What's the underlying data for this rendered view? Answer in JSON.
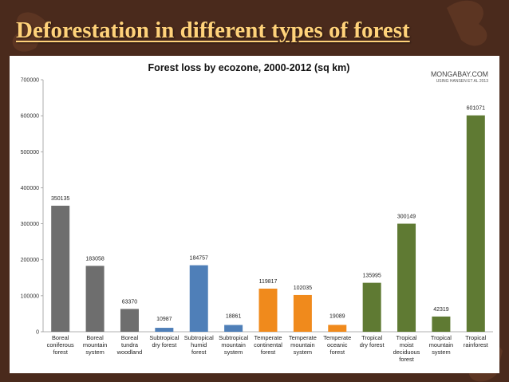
{
  "slide": {
    "title": "Deforestation in different types of forest",
    "background_color": "#4a2a1c",
    "title_color": "#ffd27a"
  },
  "source": {
    "line1": "MONGABAY.COM",
    "line2": "USING HANSEN ET AL 2013"
  },
  "chart_data": {
    "type": "bar",
    "title": "Forest loss by ecozone, 2000-2012 (sq km)",
    "xlabel": "",
    "ylabel": "",
    "ylim": [
      0,
      700000
    ],
    "yticks": [
      0,
      100000,
      200000,
      300000,
      400000,
      500000,
      600000,
      700000
    ],
    "grid": false,
    "legend": "none",
    "categories": [
      [
        "Boreal",
        "coniferous",
        "forest"
      ],
      [
        "Boreal",
        "mountain",
        "system"
      ],
      [
        "Boreal",
        "tundra",
        "woodland"
      ],
      [
        "Subtropical",
        "dry forest"
      ],
      [
        "Subtropical",
        "humid",
        "forest"
      ],
      [
        "Subtropical",
        "mountain",
        "system"
      ],
      [
        "Temperate",
        "continental",
        "forest"
      ],
      [
        "Temperate",
        "mountain",
        "system"
      ],
      [
        "Temperate",
        "oceanic",
        "forest"
      ],
      [
        "Tropical",
        "dry forest"
      ],
      [
        "Tropical",
        "moist",
        "deciduous",
        "forest"
      ],
      [
        "Tropical",
        "mountain",
        "system"
      ],
      [
        "Tropical",
        "rainforest"
      ]
    ],
    "values": [
      350135,
      183058,
      63370,
      10987,
      184757,
      18861,
      119817,
      102035,
      19089,
      135995,
      300149,
      42319,
      601071
    ],
    "colors": [
      "#6e6e6e",
      "#6e6e6e",
      "#6e6e6e",
      "#4f7fb8",
      "#4f7fb8",
      "#4f7fb8",
      "#f08a1c",
      "#f08a1c",
      "#f08a1c",
      "#5f7a33",
      "#5f7a33",
      "#5f7a33",
      "#5f7a33"
    ]
  }
}
